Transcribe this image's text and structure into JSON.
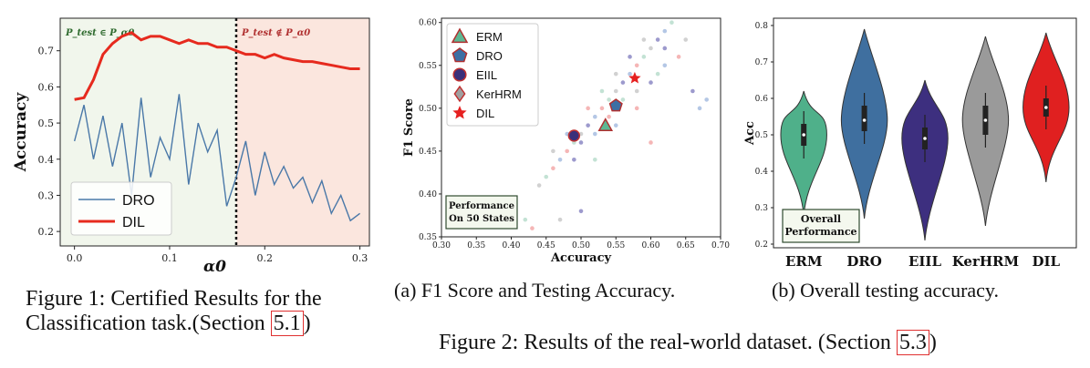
{
  "fig1": {
    "chart_data": {
      "type": "line",
      "ylabel": "Accuracy",
      "xlabel": "α0",
      "xlim": [
        -0.015,
        0.31
      ],
      "ylim": [
        0.16,
        0.79
      ],
      "xticks": [
        "0.0",
        "0.1",
        "0.2",
        "0.3"
      ],
      "yticks": [
        "0.2",
        "0.3",
        "0.4",
        "0.5",
        "0.6",
        "0.7"
      ],
      "threshold_x": 0.17,
      "region_left_label": "P_test ∈ P_α0",
      "region_right_label": "P_test ∉ P_α0",
      "legend": [
        "DRO",
        "DIL"
      ],
      "legend_position": "lower-left",
      "series": [
        {
          "name": "DRO",
          "color": "#4a78a8",
          "x": [
            0.0,
            0.01,
            0.02,
            0.03,
            0.04,
            0.05,
            0.06,
            0.07,
            0.08,
            0.09,
            0.1,
            0.11,
            0.12,
            0.13,
            0.14,
            0.15,
            0.16,
            0.17,
            0.18,
            0.19,
            0.2,
            0.21,
            0.22,
            0.23,
            0.24,
            0.25,
            0.26,
            0.27,
            0.28,
            0.29,
            0.3
          ],
          "y": [
            0.45,
            0.55,
            0.4,
            0.52,
            0.38,
            0.5,
            0.3,
            0.57,
            0.35,
            0.46,
            0.4,
            0.58,
            0.33,
            0.5,
            0.42,
            0.48,
            0.27,
            0.35,
            0.45,
            0.3,
            0.42,
            0.33,
            0.38,
            0.32,
            0.35,
            0.28,
            0.34,
            0.25,
            0.3,
            0.23,
            0.25
          ]
        },
        {
          "name": "DIL",
          "color": "#e62a1e",
          "x": [
            0.0,
            0.01,
            0.02,
            0.03,
            0.04,
            0.05,
            0.06,
            0.07,
            0.08,
            0.09,
            0.1,
            0.11,
            0.12,
            0.13,
            0.14,
            0.15,
            0.16,
            0.17,
            0.18,
            0.19,
            0.2,
            0.21,
            0.22,
            0.23,
            0.24,
            0.25,
            0.26,
            0.27,
            0.28,
            0.29,
            0.3
          ],
          "y": [
            0.565,
            0.57,
            0.62,
            0.69,
            0.72,
            0.74,
            0.75,
            0.73,
            0.74,
            0.74,
            0.73,
            0.72,
            0.73,
            0.72,
            0.72,
            0.71,
            0.71,
            0.7,
            0.69,
            0.69,
            0.68,
            0.69,
            0.68,
            0.675,
            0.67,
            0.67,
            0.665,
            0.66,
            0.655,
            0.65,
            0.65
          ]
        }
      ]
    },
    "caption": "Figure 1: Certified Results for the",
    "caption2": "Classification task.(Section ",
    "caption_ref": "5.1",
    "caption_end": ")"
  },
  "fig2a": {
    "chart_data": {
      "type": "scatter",
      "xlabel": "Accuracy",
      "ylabel": "F1 Score",
      "xlim": [
        0.3,
        0.7
      ],
      "ylim": [
        0.35,
        0.605
      ],
      "xticks": [
        "0.30",
        "0.35",
        "0.40",
        "0.45",
        "0.50",
        "0.55",
        "0.60",
        "0.65",
        "0.70"
      ],
      "yticks": [
        "0.35",
        "0.40",
        "0.45",
        "0.50",
        "0.55",
        "0.60"
      ],
      "annotation": [
        "Performance",
        "On 50 States"
      ],
      "legend_position": "top-left",
      "series": [
        {
          "name": "ERM",
          "color": "#5db893",
          "marker": "triangle",
          "x": [
            0.535
          ],
          "y": [
            0.48
          ]
        },
        {
          "name": "DRO",
          "color": "#3d6fa4",
          "marker": "pentagon",
          "x": [
            0.55
          ],
          "y": [
            0.503
          ]
        },
        {
          "name": "EIIL",
          "color": "#3a2f7a",
          "marker": "circle",
          "x": [
            0.49
          ],
          "y": [
            0.468
          ]
        },
        {
          "name": "KerHRM",
          "color": "#a0a0a0",
          "marker": "diamond",
          "x": [
            0.535
          ],
          "y": [
            0.48
          ]
        },
        {
          "name": "DIL",
          "color": "#e62020",
          "marker": "star",
          "x": [
            0.577
          ],
          "y": [
            0.535
          ]
        }
      ],
      "cloud": [
        [
          0.47,
          0.44
        ],
        [
          0.48,
          0.45
        ],
        [
          0.49,
          0.46
        ],
        [
          0.5,
          0.47
        ],
        [
          0.51,
          0.48
        ],
        [
          0.52,
          0.49
        ],
        [
          0.53,
          0.5
        ],
        [
          0.54,
          0.51
        ],
        [
          0.55,
          0.52
        ],
        [
          0.56,
          0.53
        ],
        [
          0.57,
          0.54
        ],
        [
          0.58,
          0.55
        ],
        [
          0.59,
          0.56
        ],
        [
          0.6,
          0.57
        ],
        [
          0.61,
          0.58
        ],
        [
          0.62,
          0.59
        ],
        [
          0.46,
          0.43
        ],
        [
          0.45,
          0.42
        ],
        [
          0.44,
          0.41
        ],
        [
          0.5,
          0.46
        ],
        [
          0.52,
          0.47
        ],
        [
          0.54,
          0.49
        ],
        [
          0.56,
          0.51
        ],
        [
          0.58,
          0.52
        ],
        [
          0.6,
          0.53
        ],
        [
          0.62,
          0.55
        ],
        [
          0.64,
          0.56
        ],
        [
          0.53,
          0.52
        ],
        [
          0.55,
          0.54
        ],
        [
          0.57,
          0.56
        ],
        [
          0.48,
          0.47
        ],
        [
          0.51,
          0.5
        ],
        [
          0.63,
          0.6
        ],
        [
          0.65,
          0.58
        ],
        [
          0.66,
          0.52
        ],
        [
          0.67,
          0.5
        ],
        [
          0.43,
          0.36
        ],
        [
          0.42,
          0.37
        ],
        [
          0.46,
          0.45
        ],
        [
          0.49,
          0.44
        ],
        [
          0.55,
          0.48
        ],
        [
          0.58,
          0.5
        ],
        [
          0.61,
          0.54
        ],
        [
          0.59,
          0.58
        ],
        [
          0.62,
          0.57
        ],
        [
          0.68,
          0.51
        ],
        [
          0.6,
          0.46
        ],
        [
          0.52,
          0.44
        ],
        [
          0.47,
          0.37
        ],
        [
          0.5,
          0.38
        ]
      ]
    },
    "caption": "(a) F1 Score and Testing Accuracy."
  },
  "fig2b": {
    "chart_data": {
      "type": "violin",
      "ylabel": "Acc",
      "categories": [
        "ERM",
        "DRO",
        "EIIL",
        "KerHRM",
        "DIL"
      ],
      "ylim": [
        0.19,
        0.82
      ],
      "yticks": [
        "0.2",
        "0.3",
        "0.4",
        "0.5",
        "0.6",
        "0.7",
        "0.8"
      ],
      "annotation": [
        "Overall",
        "Performance"
      ],
      "series": [
        {
          "name": "ERM",
          "color": "#4fb08a",
          "min": 0.28,
          "max": 0.62,
          "q1": 0.47,
          "median": 0.5,
          "q3": 0.53
        },
        {
          "name": "DRO",
          "color": "#3f6f9f",
          "min": 0.27,
          "max": 0.79,
          "q1": 0.51,
          "median": 0.54,
          "q3": 0.58
        },
        {
          "name": "EIIL",
          "color": "#3d2f7f",
          "min": 0.21,
          "max": 0.65,
          "q1": 0.46,
          "median": 0.49,
          "q3": 0.52
        },
        {
          "name": "KerHRM",
          "color": "#9a9a9a",
          "min": 0.25,
          "max": 0.77,
          "q1": 0.5,
          "median": 0.54,
          "q3": 0.58
        },
        {
          "name": "DIL",
          "color": "#e02020",
          "min": 0.37,
          "max": 0.78,
          "q1": 0.55,
          "median": 0.575,
          "q3": 0.6
        }
      ]
    },
    "caption": "(b) Overall testing accuracy."
  },
  "fig2_caption": "Figure 2: Results of the real-world dataset. (Section ",
  "fig2_caption_ref": "5.3",
  "fig2_caption_end": ")"
}
